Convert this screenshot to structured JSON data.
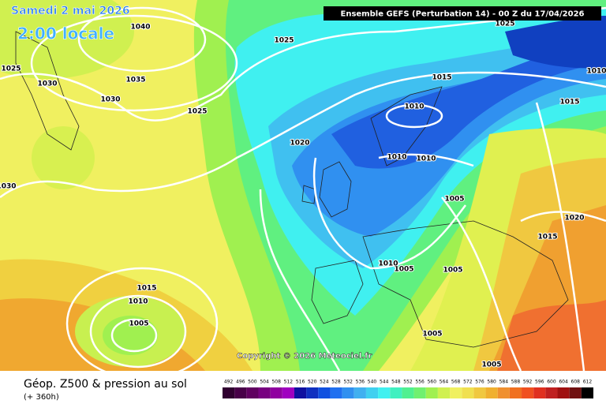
{
  "header": {
    "title": "Samedi 2 mai 2026",
    "time": "2:00 locale",
    "model": "Ensemble GEFS (Perturbation 14)  -  00 Z du 17/04/2026"
  },
  "map": {
    "copyright": "Copyright © 2026 Meteociel.fr",
    "isobar_labels": [
      1040,
      1035,
      1030,
      1030,
      1025,
      1030,
      1025,
      1025,
      1020,
      1015,
      1010,
      1010,
      1010,
      1015,
      1010,
      1025,
      1005,
      1020,
      1015,
      1005,
      1010,
      1005,
      1005,
      1005,
      1015,
      1010,
      1005
    ]
  },
  "footer": {
    "title": "Géop. Z500 & pression au sol",
    "lead": "(+ 360h)"
  },
  "legend": {
    "values": [
      492,
      496,
      500,
      504,
      508,
      512,
      516,
      520,
      524,
      528,
      532,
      536,
      540,
      544,
      548,
      552,
      556,
      560,
      564,
      568,
      572,
      576,
      580,
      584,
      588,
      592,
      596,
      600,
      604,
      608,
      612
    ],
    "colors": [
      "#300030",
      "#480048",
      "#600060",
      "#780080",
      "#9000a0",
      "#a000c0",
      "#1010a0",
      "#1030c0",
      "#1050e0",
      "#2070f0",
      "#3090f0",
      "#40b0f0",
      "#40d0f0",
      "#40f0f0",
      "#40f0c0",
      "#50f090",
      "#70f070",
      "#a0f050",
      "#d0f050",
      "#f0f060",
      "#f0e050",
      "#f0c840",
      "#f0b030",
      "#f09030",
      "#f07020",
      "#f05020",
      "#e03020",
      "#c02020",
      "#a01010",
      "#701010",
      "#000000"
    ]
  }
}
